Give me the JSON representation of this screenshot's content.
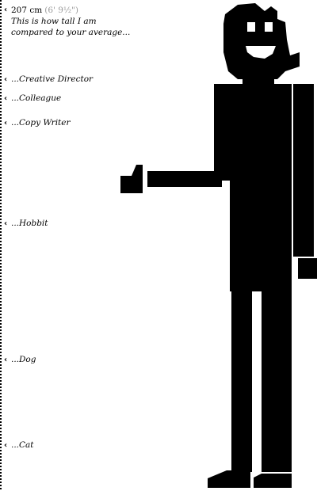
{
  "header": {
    "height_metric": "207 cm",
    "height_imperial": "(6' 9½\")",
    "line1": "This is how tall I am",
    "line2": "compared to your average..."
  },
  "markers": [
    {
      "label": "...Creative Director"
    },
    {
      "label": "...Colleague"
    },
    {
      "label": "...Copy Writer"
    },
    {
      "label": "...Hobbit"
    },
    {
      "label": "...Dog"
    },
    {
      "label": "...Cat"
    }
  ],
  "icons": {
    "marker_chevron": "‹",
    "figure": "tall-man-figure"
  },
  "colors": {
    "figure": "#000000",
    "text": "#000000",
    "imperial": "#9a9a9a",
    "background": "#ffffff"
  }
}
